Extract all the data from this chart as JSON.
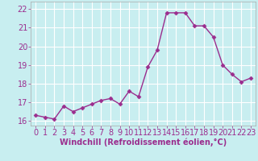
{
  "x": [
    0,
    1,
    2,
    3,
    4,
    5,
    6,
    7,
    8,
    9,
    10,
    11,
    12,
    13,
    14,
    15,
    16,
    17,
    18,
    19,
    20,
    21,
    22,
    23
  ],
  "y": [
    16.3,
    16.2,
    16.1,
    16.8,
    16.5,
    16.7,
    16.9,
    17.1,
    17.2,
    16.9,
    17.6,
    17.3,
    18.9,
    19.8,
    21.8,
    21.8,
    21.8,
    21.1,
    21.1,
    20.5,
    19.0,
    18.5,
    18.1,
    18.3
  ],
  "line_color": "#9B2D8E",
  "marker": "D",
  "markersize": 2.5,
  "linewidth": 1.0,
  "bg_color": "#C8EEF0",
  "grid_color": "#FFFFFF",
  "xlabel": "Windchill (Refroidissement éolien,°C)",
  "xlabel_fontsize": 7,
  "tick_fontsize": 7,
  "label_color": "#9B2D8E",
  "xlim": [
    -0.5,
    23.5
  ],
  "ylim": [
    15.75,
    22.4
  ],
  "yticks": [
    16,
    17,
    18,
    19,
    20,
    21,
    22
  ],
  "xticks": [
    0,
    1,
    2,
    3,
    4,
    5,
    6,
    7,
    8,
    9,
    10,
    11,
    12,
    13,
    14,
    15,
    16,
    17,
    18,
    19,
    20,
    21,
    22,
    23
  ],
  "figsize": [
    3.2,
    2.0
  ],
  "dpi": 100
}
